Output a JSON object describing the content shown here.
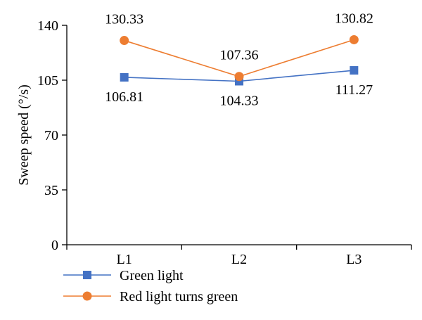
{
  "chart_data": {
    "type": "line",
    "categories": [
      "L1",
      "L2",
      "L3"
    ],
    "series": [
      {
        "name": "Green light",
        "values": [
          106.81,
          104.33,
          111.27
        ],
        "color": "#4472C4",
        "marker": "square",
        "labels": [
          "106.81",
          "104.33",
          "111.27"
        ]
      },
      {
        "name": "Red light turns green",
        "values": [
          130.33,
          107.36,
          130.82
        ],
        "color": "#ED7D31",
        "marker": "circle",
        "labels": [
          "130.33",
          "107.36",
          "130.82"
        ]
      }
    ],
    "ylabel": "Sweep speed (°/s)",
    "xlabel": "",
    "title": "",
    "ylim": [
      0,
      140
    ],
    "yticks": [
      "0",
      "35",
      "70",
      "105",
      "140"
    ],
    "grid": false,
    "legend_position": "bottom-left"
  }
}
